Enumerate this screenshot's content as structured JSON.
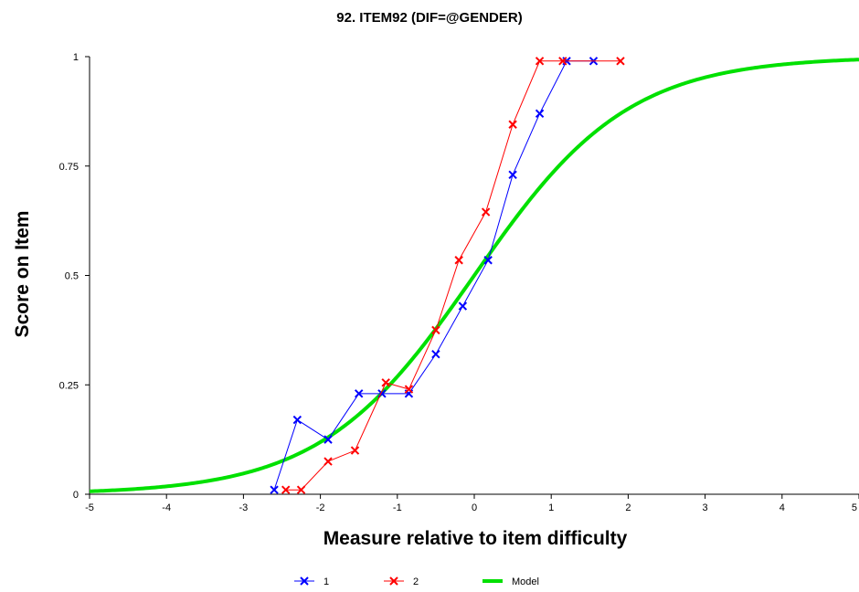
{
  "chart_data": {
    "type": "line",
    "title": "92. ITEM92  (DIF=@GENDER)",
    "xlabel": "Measure relative to item difficulty",
    "ylabel": "Score on Item",
    "xlim": [
      -5,
      5
    ],
    "ylim": [
      0,
      1
    ],
    "x_ticks": [
      "-5",
      "-4",
      "-3",
      "-2",
      "-1",
      "0",
      "1",
      "2",
      "3",
      "4",
      "5"
    ],
    "y_ticks": [
      "0",
      "0.25",
      "0.5",
      "0.75",
      "1"
    ],
    "grid": false,
    "legend_position": "bottom",
    "series": [
      {
        "name": "1",
        "color": "#0000ff",
        "marker": "x",
        "x": [
          -2.6,
          -2.3,
          -1.9,
          -1.5,
          -1.2,
          -0.85,
          -0.5,
          -0.15,
          0.18,
          0.5,
          0.85,
          1.2,
          1.55
        ],
        "y": [
          0.01,
          0.17,
          0.125,
          0.23,
          0.23,
          0.23,
          0.32,
          0.43,
          0.535,
          0.73,
          0.87,
          0.99,
          0.99
        ]
      },
      {
        "name": "2",
        "color": "#ff0000",
        "marker": "x",
        "x": [
          -2.45,
          -2.25,
          -1.9,
          -1.55,
          -1.15,
          -0.85,
          -0.5,
          -0.2,
          0.15,
          0.5,
          0.85,
          1.15,
          1.9
        ],
        "y": [
          0.01,
          0.01,
          0.075,
          0.1,
          0.255,
          0.24,
          0.375,
          0.535,
          0.645,
          0.845,
          0.99,
          0.99,
          0.99
        ]
      },
      {
        "name": "Model",
        "color": "#00e000",
        "marker": "none",
        "curve": "logistic"
      }
    ]
  }
}
